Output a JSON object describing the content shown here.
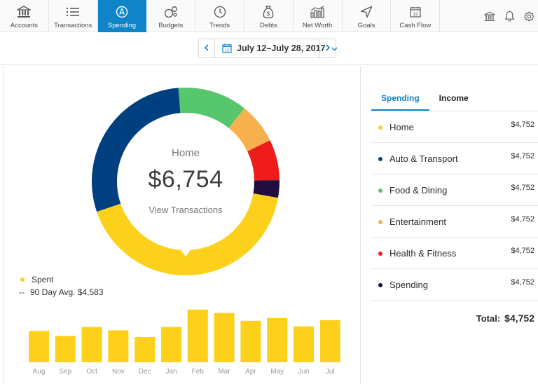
{
  "nav": {
    "tabs": [
      {
        "label": "Accounts",
        "icon": "bank-icon",
        "active": false
      },
      {
        "label": "Transactions",
        "icon": "list-icon",
        "active": false
      },
      {
        "label": "Spending",
        "icon": "compass-icon",
        "active": true
      },
      {
        "label": "Budgets",
        "icon": "budget-circles-icon",
        "active": false
      },
      {
        "label": "Trends",
        "icon": "clock-icon",
        "active": false
      },
      {
        "label": "Debts",
        "icon": "money-bag-icon",
        "active": false
      },
      {
        "label": "Net Worth",
        "icon": "bar-chart-icon",
        "active": false
      },
      {
        "label": "Goals",
        "icon": "navigation-arrow-icon",
        "active": false
      },
      {
        "label": "Cash Flow",
        "icon": "calendar-icon",
        "active": false
      }
    ],
    "right_icons": [
      "bank-icon",
      "bell-icon",
      "gear-icon"
    ]
  },
  "date_range": {
    "label": "July 12–July 28, 2017",
    "calendar_day": "12",
    "prev_icon": "chevron-left-icon",
    "next_icon": "chevron-right-icon",
    "dropdown_icon": "chevron-down-icon"
  },
  "donut": {
    "selected_category": "Home",
    "amount": "$6,754",
    "link": "View Transactions",
    "segments": [
      {
        "name": "Home",
        "color": "#fdd11b",
        "fraction": 0.42
      },
      {
        "name": "Auto & Transport",
        "color": "#003f80",
        "fraction": 0.29
      },
      {
        "name": "Food & Dining",
        "color": "#56c76c",
        "fraction": 0.12
      },
      {
        "name": "Entertainment",
        "color": "#f6b14e",
        "fraction": 0.07
      },
      {
        "name": "Health & Fitness",
        "color": "#ee1c1c",
        "fraction": 0.07
      },
      {
        "name": "Spending",
        "color": "#220d40",
        "fraction": 0.03
      }
    ]
  },
  "legend": {
    "spent": "Spent",
    "avg": "90 Day Avg. $4,583",
    "spent_color": "#fdd11b"
  },
  "chart_data": {
    "type": "bar",
    "categories": [
      "Aug",
      "Sep",
      "Oct",
      "Nov",
      "Dec",
      "Jan",
      "Feb",
      "Mar",
      "Apr",
      "May",
      "Jun",
      "Jul"
    ],
    "values": [
      0.56,
      0.47,
      0.63,
      0.57,
      0.45,
      0.63,
      0.94,
      0.88,
      0.74,
      0.79,
      0.64,
      0.75
    ],
    "color": "#fdd11b",
    "title": "",
    "xlabel": "",
    "ylabel": "",
    "grid": false
  },
  "tabs": {
    "spending": "Spending",
    "income": "Income"
  },
  "categories": [
    {
      "name": "Home",
      "amount": "$4,752",
      "color": "#fdd11b"
    },
    {
      "name": "Auto & Transport",
      "amount": "$4,752",
      "color": "#003f80"
    },
    {
      "name": "Food & Dining",
      "amount": "$4,752",
      "color": "#56c76c"
    },
    {
      "name": "Entertainment",
      "amount": "$4,752",
      "color": "#f6b14e"
    },
    {
      "name": "Health & Fitness",
      "amount": "$4,752",
      "color": "#ee1c1c"
    },
    {
      "name": "Spending",
      "amount": "$4,752",
      "color": "#220d40"
    }
  ],
  "total": {
    "label": "Total:",
    "value": "$4,752"
  }
}
